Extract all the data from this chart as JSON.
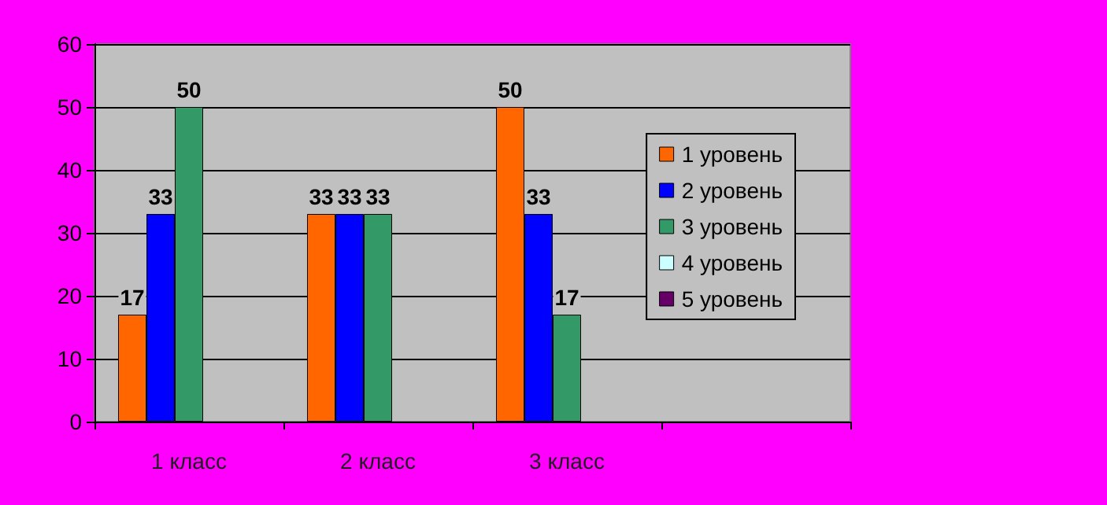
{
  "chart_data": {
    "type": "bar",
    "categories": [
      "1 класс",
      "2 класс",
      "3 класс",
      null
    ],
    "series": [
      {
        "name": "1 уровень",
        "color": "#ff6600",
        "values": [
          17,
          33,
          50,
          null
        ]
      },
      {
        "name": "2 уровень",
        "color": "#0000ff",
        "values": [
          33,
          33,
          33,
          null
        ]
      },
      {
        "name": "3 уровень",
        "color": "#339966",
        "values": [
          50,
          33,
          17,
          null
        ]
      },
      {
        "name": "4 уровень",
        "color": "#ccffff",
        "values": [
          null,
          null,
          null,
          null
        ]
      },
      {
        "name": "5 уровень",
        "color": "#660066",
        "values": [
          null,
          null,
          null,
          null
        ]
      }
    ],
    "ylim": [
      0,
      60
    ],
    "yticks": [
      0,
      10,
      20,
      30,
      40,
      50,
      60
    ],
    "grid": "y",
    "legend": "right",
    "data_labels": true
  }
}
